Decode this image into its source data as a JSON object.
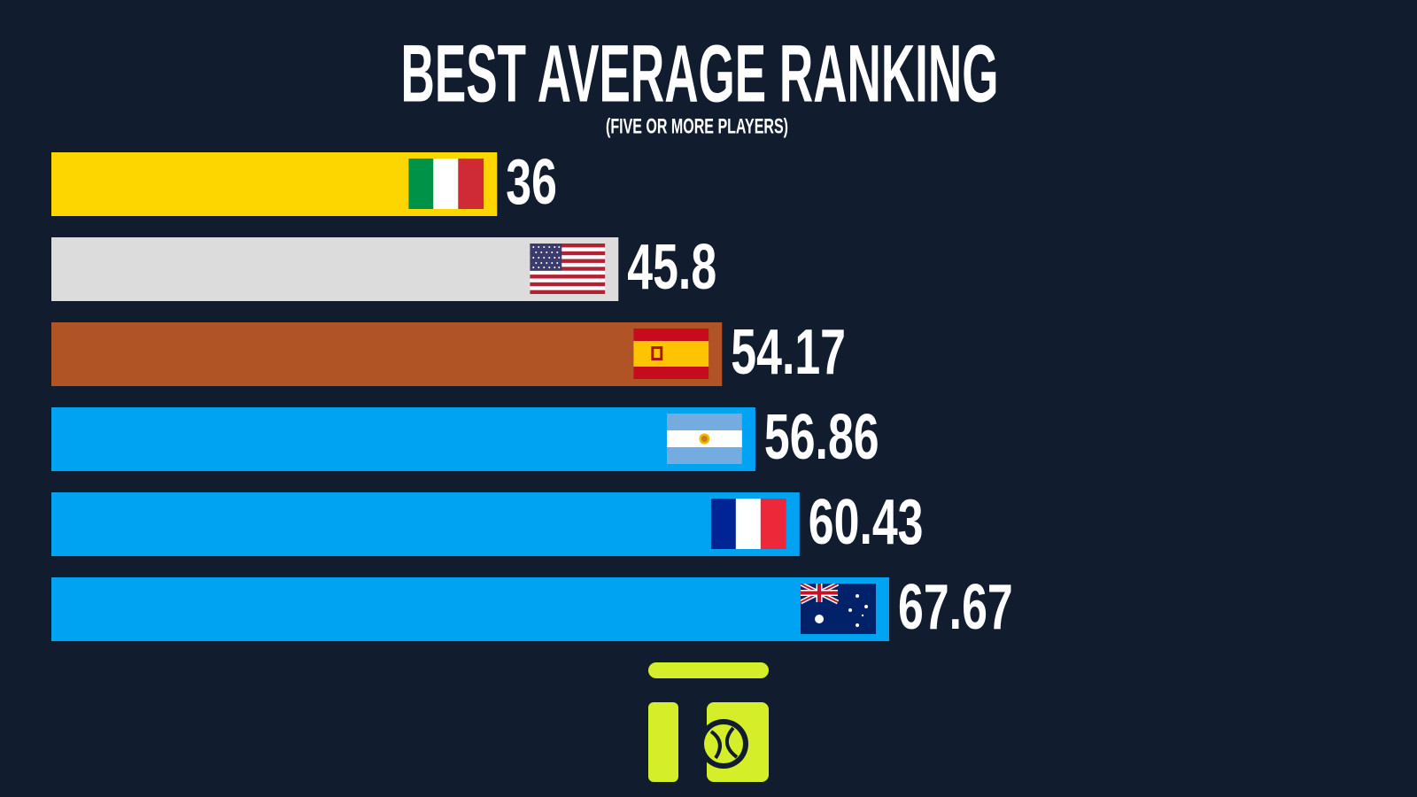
{
  "chart_data": {
    "type": "bar",
    "orientation": "horizontal",
    "title": "BEST AVERAGE RANKING",
    "subtitle": "(FIVE OR MORE PLAYERS)",
    "values": [
      36,
      45.8,
      54.17,
      56.86,
      60.43,
      67.67
    ],
    "colors": [
      "#fdd600",
      "#dcdcdc",
      "#b05425",
      "#00a2f2",
      "#00a2f2",
      "#00a2f2"
    ]
  }
}
